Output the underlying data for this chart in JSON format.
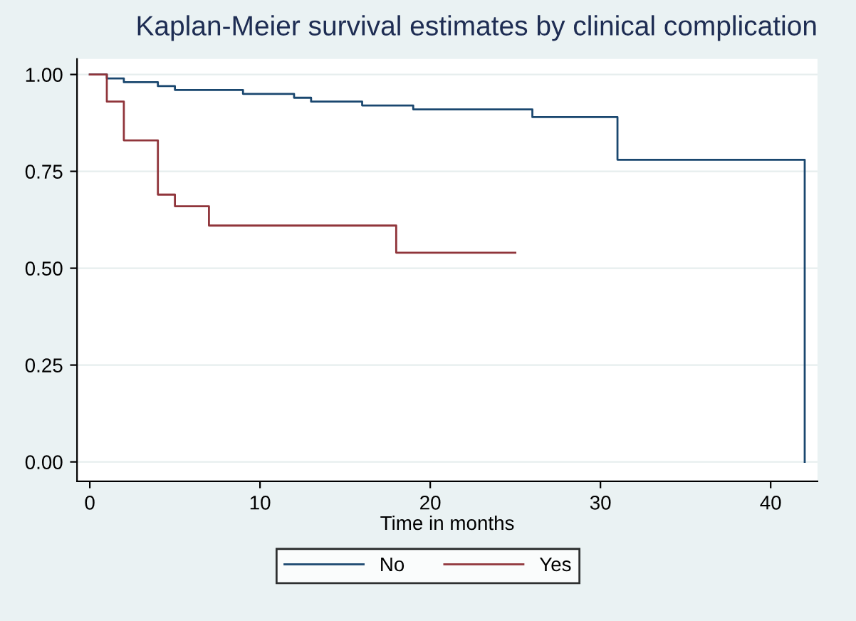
{
  "chart_data": {
    "type": "step",
    "title": "Kaplan-Meier survival estimates by clinical complication",
    "xlabel": "Time in months",
    "series": [
      {
        "name": "No",
        "color": "#1a476f",
        "x": [
          0,
          1,
          2,
          3,
          4,
          5,
          6,
          9,
          10,
          12,
          13,
          14,
          16,
          19,
          26,
          31,
          42
        ],
        "values": [
          1.0,
          0.99,
          0.98,
          0.98,
          0.97,
          0.96,
          0.96,
          0.95,
          0.95,
          0.94,
          0.93,
          0.93,
          0.92,
          0.91,
          0.89,
          0.78,
          0.0
        ]
      },
      {
        "name": "Yes",
        "color": "#90353b",
        "x": [
          0,
          1,
          2,
          4,
          5,
          7,
          18,
          25
        ],
        "values": [
          1.0,
          0.93,
          0.83,
          0.69,
          0.66,
          0.61,
          0.54,
          0.54
        ]
      }
    ],
    "xlim": [
      -0.75,
      42.75
    ],
    "ylim": [
      -0.05,
      1.04
    ],
    "xticks": [
      0,
      10,
      20,
      30,
      40
    ],
    "yticks": [
      {
        "value": 0,
        "label": "0.00"
      },
      {
        "value": 0.25,
        "label": "0.25"
      },
      {
        "value": 0.5,
        "label": "0.50"
      },
      {
        "value": 0.75,
        "label": "0.75"
      },
      {
        "value": 1,
        "label": "1.00"
      }
    ],
    "grid": "y",
    "legend": "bottom",
    "line_style": "solid",
    "marker": "none"
  }
}
